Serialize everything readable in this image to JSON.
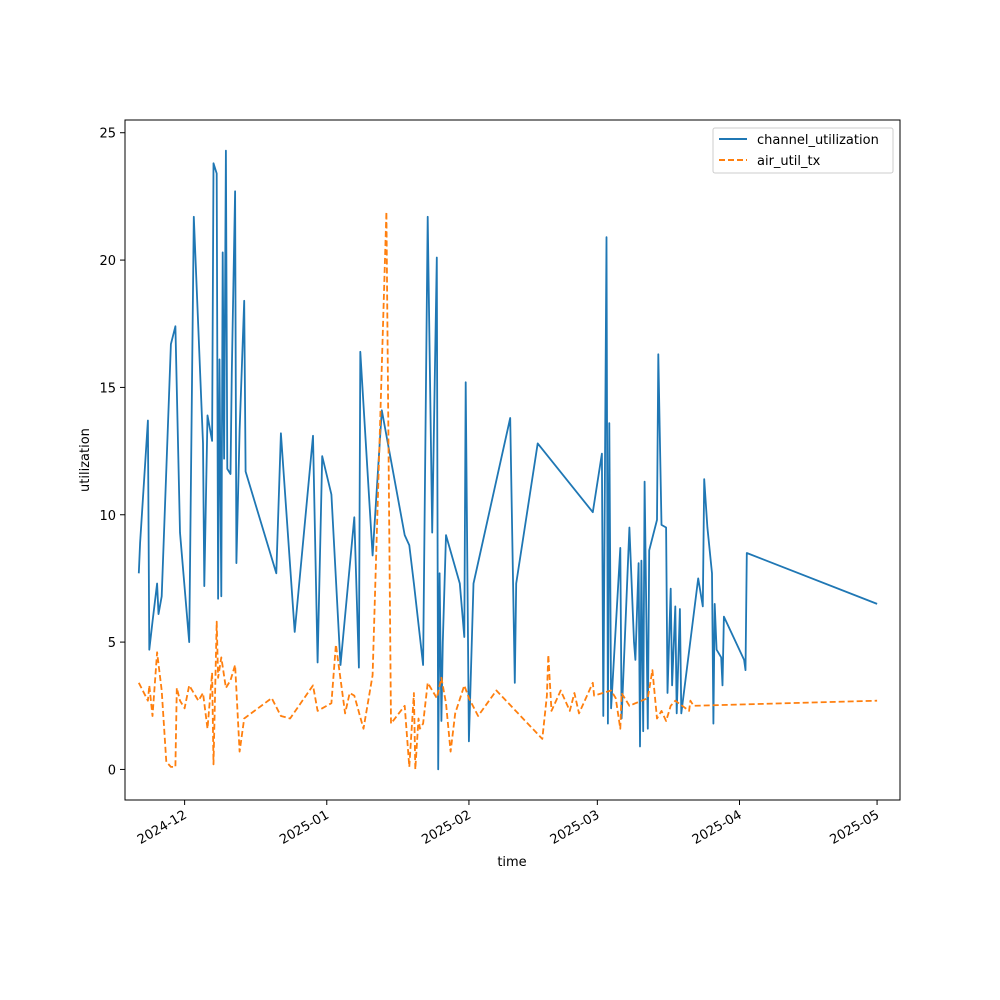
{
  "chart_data": {
    "type": "line",
    "title": "",
    "xlabel": "time",
    "ylabel": "utilization",
    "x_type": "date",
    "xlim": [
      "2024-11-18",
      "2025-05-06"
    ],
    "ylim": [
      -1.2,
      25.5
    ],
    "x_ticks": [
      {
        "date": "2024-12-01",
        "label": "2024-12"
      },
      {
        "date": "2025-01-01",
        "label": "2025-01"
      },
      {
        "date": "2025-02-01",
        "label": "2025-02"
      },
      {
        "date": "2025-03-01",
        "label": "2025-03"
      },
      {
        "date": "2025-04-01",
        "label": "2025-04"
      },
      {
        "date": "2025-05-01",
        "label": "2025-05"
      }
    ],
    "y_ticks": [
      0,
      5,
      10,
      15,
      20,
      25
    ],
    "grid": false,
    "legend_position": "top-right",
    "series": [
      {
        "name": "channel_utilization",
        "color": "#1f77b4",
        "dash": "solid",
        "points": [
          [
            "2024-11-21",
            7.7
          ],
          [
            "2024-11-21",
            8.9
          ],
          [
            "2024-11-23",
            13.7
          ],
          [
            "2024-11-23",
            4.7
          ],
          [
            "2024-11-24",
            5.8
          ],
          [
            "2024-11-25",
            7.3
          ],
          [
            "2024-11-25",
            6.1
          ],
          [
            "2024-11-26",
            6.8
          ],
          [
            "2024-11-28",
            16.7
          ],
          [
            "2024-11-29",
            17.4
          ],
          [
            "2024-11-30",
            9.3
          ],
          [
            "2024-12-02",
            5.0
          ],
          [
            "2024-12-03",
            21.7
          ],
          [
            "2024-12-05",
            12.8
          ],
          [
            "2024-12-05",
            7.2
          ],
          [
            "2024-12-06",
            13.9
          ],
          [
            "2024-12-07",
            12.9
          ],
          [
            "2024-12-07",
            23.8
          ],
          [
            "2024-12-08",
            23.4
          ],
          [
            "2024-12-08",
            6.7
          ],
          [
            "2024-12-08",
            16.1
          ],
          [
            "2024-12-09",
            6.8
          ],
          [
            "2024-12-09",
            20.3
          ],
          [
            "2024-12-09",
            12.2
          ],
          [
            "2024-12-10",
            24.3
          ],
          [
            "2024-12-10",
            11.8
          ],
          [
            "2024-12-11",
            11.6
          ],
          [
            "2024-12-11",
            15.6
          ],
          [
            "2024-12-12",
            22.7
          ],
          [
            "2024-12-12",
            8.1
          ],
          [
            "2024-12-13",
            13.3
          ],
          [
            "2024-12-14",
            18.4
          ],
          [
            "2024-12-14",
            11.7
          ],
          [
            "2024-12-21",
            7.7
          ],
          [
            "2024-12-22",
            13.2
          ],
          [
            "2024-12-25",
            5.4
          ],
          [
            "2024-12-29",
            13.1
          ],
          [
            "2024-12-30",
            4.2
          ],
          [
            "2024-12-31",
            12.3
          ],
          [
            "2025-01-02",
            10.8
          ],
          [
            "2025-01-04",
            4.1
          ],
          [
            "2025-01-07",
            9.9
          ],
          [
            "2025-01-08",
            4.0
          ],
          [
            "2025-01-08",
            16.4
          ],
          [
            "2025-01-11",
            8.4
          ],
          [
            "2025-01-13",
            14.1
          ],
          [
            "2025-01-18",
            9.2
          ],
          [
            "2025-01-19",
            8.8
          ],
          [
            "2025-01-20",
            7.3
          ],
          [
            "2025-01-22",
            4.1
          ],
          [
            "2025-01-23",
            21.7
          ],
          [
            "2025-01-24",
            9.3
          ],
          [
            "2025-01-25",
            20.1
          ],
          [
            "2025-01-25",
            0.0
          ],
          [
            "2025-01-25",
            7.7
          ],
          [
            "2025-01-26",
            1.9
          ],
          [
            "2025-01-26",
            5.0
          ],
          [
            "2025-01-27",
            9.2
          ],
          [
            "2025-01-30",
            7.3
          ],
          [
            "2025-01-31",
            5.2
          ],
          [
            "2025-01-31",
            15.2
          ],
          [
            "2025-02-01",
            1.1
          ],
          [
            "2025-02-02",
            7.3
          ],
          [
            "2025-02-10",
            13.8
          ],
          [
            "2025-02-11",
            3.4
          ],
          [
            "2025-02-11",
            7.3
          ],
          [
            "2025-02-16",
            12.8
          ],
          [
            "2025-02-28",
            10.1
          ],
          [
            "2025-03-02",
            12.4
          ],
          [
            "2025-03-02",
            2.1
          ],
          [
            "2025-03-03",
            20.9
          ],
          [
            "2025-03-03",
            1.8
          ],
          [
            "2025-03-03",
            13.6
          ],
          [
            "2025-03-04",
            2.4
          ],
          [
            "2025-03-06",
            8.7
          ],
          [
            "2025-03-06",
            2.0
          ],
          [
            "2025-03-08",
            9.5
          ],
          [
            "2025-03-09",
            5.0
          ],
          [
            "2025-03-09",
            4.3
          ],
          [
            "2025-03-10",
            8.1
          ],
          [
            "2025-03-10",
            0.9
          ],
          [
            "2025-03-10",
            8.2
          ],
          [
            "2025-03-11",
            1.5
          ],
          [
            "2025-03-11",
            11.3
          ],
          [
            "2025-03-12",
            1.6
          ],
          [
            "2025-03-12",
            8.6
          ],
          [
            "2025-03-14",
            9.8
          ],
          [
            "2025-03-14",
            16.3
          ],
          [
            "2025-03-15",
            9.6
          ],
          [
            "2025-03-16",
            9.5
          ],
          [
            "2025-03-16",
            3.0
          ],
          [
            "2025-03-17",
            7.1
          ],
          [
            "2025-03-17",
            3.3
          ],
          [
            "2025-03-18",
            6.4
          ],
          [
            "2025-03-18",
            2.2
          ],
          [
            "2025-03-19",
            6.3
          ],
          [
            "2025-03-19",
            2.2
          ],
          [
            "2025-03-23",
            7.5
          ],
          [
            "2025-03-24",
            6.4
          ],
          [
            "2025-03-24",
            11.4
          ],
          [
            "2025-03-25",
            9.5
          ],
          [
            "2025-03-26",
            7.7
          ],
          [
            "2025-03-26",
            1.8
          ],
          [
            "2025-03-26",
            6.5
          ],
          [
            "2025-03-27",
            4.7
          ],
          [
            "2025-03-28",
            4.4
          ],
          [
            "2025-03-28",
            3.3
          ],
          [
            "2025-03-28",
            6.0
          ],
          [
            "2025-04-02",
            4.3
          ],
          [
            "2025-04-02",
            3.9
          ],
          [
            "2025-04-02",
            8.5
          ],
          [
            "2025-05-01",
            6.5
          ]
        ]
      },
      {
        "name": "air_util_tx",
        "color": "#ff7f0e",
        "dash": "dashed",
        "points": [
          [
            "2024-11-21",
            3.4
          ],
          [
            "2024-11-23",
            2.7
          ],
          [
            "2024-11-23",
            3.3
          ],
          [
            "2024-11-24",
            2.1
          ],
          [
            "2024-11-25",
            4.6
          ],
          [
            "2024-11-26",
            3.1
          ],
          [
            "2024-11-27",
            0.3
          ],
          [
            "2024-11-28",
            0.1
          ],
          [
            "2024-11-29",
            0.1
          ],
          [
            "2024-11-29",
            3.2
          ],
          [
            "2024-11-30",
            2.7
          ],
          [
            "2024-12-01",
            2.4
          ],
          [
            "2024-12-02",
            3.3
          ],
          [
            "2024-12-04",
            2.7
          ],
          [
            "2024-12-05",
            3.0
          ],
          [
            "2024-12-06",
            1.6
          ],
          [
            "2024-12-07",
            3.8
          ],
          [
            "2024-12-07",
            0.2
          ],
          [
            "2024-12-08",
            5.8
          ],
          [
            "2024-12-08",
            3.6
          ],
          [
            "2024-12-09",
            4.4
          ],
          [
            "2024-12-10",
            3.2
          ],
          [
            "2024-12-11",
            3.5
          ],
          [
            "2024-12-12",
            4.1
          ],
          [
            "2024-12-13",
            0.7
          ],
          [
            "2024-12-14",
            2.0
          ],
          [
            "2024-12-20",
            2.8
          ],
          [
            "2024-12-22",
            2.1
          ],
          [
            "2024-12-24",
            2.0
          ],
          [
            "2024-12-29",
            3.3
          ],
          [
            "2024-12-30",
            2.3
          ],
          [
            "2025-01-02",
            2.6
          ],
          [
            "2025-01-03",
            4.9
          ],
          [
            "2025-01-05",
            2.2
          ],
          [
            "2025-01-06",
            3.0
          ],
          [
            "2025-01-07",
            2.9
          ],
          [
            "2025-01-09",
            1.6
          ],
          [
            "2025-01-11",
            3.7
          ],
          [
            "2025-01-14",
            21.9
          ],
          [
            "2025-01-15",
            1.8
          ],
          [
            "2025-01-18",
            2.5
          ],
          [
            "2025-01-19",
            0.1
          ],
          [
            "2025-01-20",
            3.0
          ],
          [
            "2025-01-20",
            0.0
          ],
          [
            "2025-01-21",
            2.0
          ],
          [
            "2025-01-21",
            1.6
          ],
          [
            "2025-01-22",
            1.8
          ],
          [
            "2025-01-23",
            3.4
          ],
          [
            "2025-01-25",
            2.8
          ],
          [
            "2025-01-26",
            3.6
          ],
          [
            "2025-01-27",
            2.6
          ],
          [
            "2025-01-28",
            0.7
          ],
          [
            "2025-01-29",
            2.2
          ],
          [
            "2025-01-31",
            3.3
          ],
          [
            "2025-02-01",
            2.8
          ],
          [
            "2025-02-03",
            2.1
          ],
          [
            "2025-02-07",
            3.1
          ],
          [
            "2025-02-17",
            1.2
          ],
          [
            "2025-02-18",
            2.9
          ],
          [
            "2025-02-18",
            4.5
          ],
          [
            "2025-02-19",
            2.3
          ],
          [
            "2025-02-21",
            3.1
          ],
          [
            "2025-02-23",
            2.3
          ],
          [
            "2025-02-24",
            3.0
          ],
          [
            "2025-02-25",
            2.2
          ],
          [
            "2025-02-27",
            3.0
          ],
          [
            "2025-02-28",
            3.4
          ],
          [
            "2025-02-28",
            2.9
          ],
          [
            "2025-03-04",
            3.1
          ],
          [
            "2025-03-05",
            2.8
          ],
          [
            "2025-03-06",
            1.6
          ],
          [
            "2025-03-06",
            3.0
          ],
          [
            "2025-03-08",
            2.5
          ],
          [
            "2025-03-12",
            2.8
          ],
          [
            "2025-03-13",
            3.9
          ],
          [
            "2025-03-14",
            2.0
          ],
          [
            "2025-03-15",
            2.3
          ],
          [
            "2025-03-16",
            1.9
          ],
          [
            "2025-03-17",
            2.5
          ],
          [
            "2025-03-18",
            2.7
          ],
          [
            "2025-03-21",
            2.3
          ],
          [
            "2025-03-21",
            2.7
          ],
          [
            "2025-03-22",
            2.5
          ],
          [
            "2025-05-01",
            2.7
          ]
        ]
      }
    ]
  }
}
